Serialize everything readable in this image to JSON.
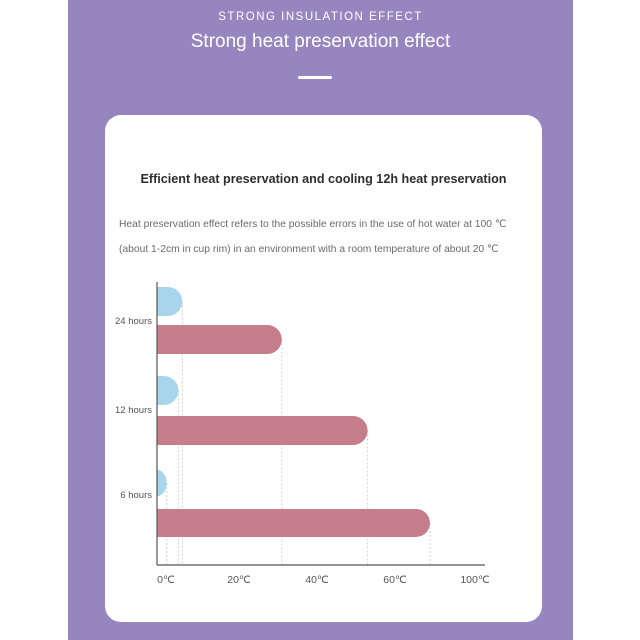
{
  "header": {
    "kicker": "STRONG INSULATION EFFECT",
    "title": "Strong heat preservation effect"
  },
  "card": {
    "title": "Efficient heat preservation and cooling 12h heat preservation",
    "description_line1": "Heat preservation effect refers to the possible errors in the use of hot water at 100 ℃",
    "description_line2": "(about 1-2cm in cup rim) in an environment with a room temperature of about 20 ℃"
  },
  "colors": {
    "panel": "#9686bf",
    "series_error": "#a9d5ec",
    "series_temp": "#c67e8c"
  },
  "chart_data": {
    "type": "bar",
    "orientation": "horizontal",
    "categories": [
      "24 hours",
      "12 hours",
      "6 hours"
    ],
    "series": [
      {
        "values": [
          6.5,
          5.5,
          2.5
        ],
        "color": "#a9d5ec"
      },
      {
        "values": [
          32,
          54,
          70
        ],
        "color": "#c67e8c"
      }
    ],
    "x_ticks": [
      "0℃",
      "20℃",
      "40℃",
      "60℃",
      "100℃"
    ],
    "xlim": [
      0,
      80
    ],
    "title": "",
    "xlabel": "",
    "ylabel": "",
    "grid": false
  }
}
